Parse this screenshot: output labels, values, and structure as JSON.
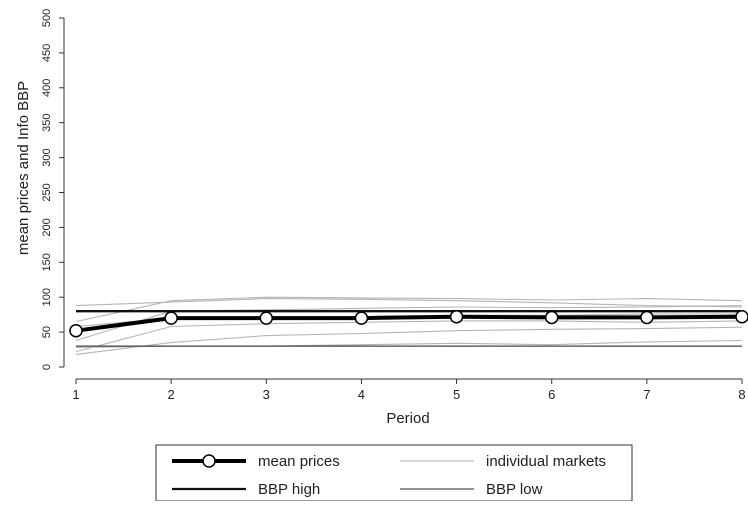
{
  "chart_data": {
    "type": "line",
    "title": "",
    "xlabel": "Period",
    "ylabel": "mean prices and Info BBP",
    "x": [
      1,
      2,
      3,
      4,
      5,
      6,
      7,
      8
    ],
    "xlim": [
      1,
      8
    ],
    "ylim": [
      0,
      500
    ],
    "yticks": [
      0,
      50,
      100,
      150,
      200,
      250,
      300,
      350,
      400,
      450,
      500
    ],
    "xticks": [
      1,
      2,
      3,
      4,
      5,
      6,
      7,
      8
    ],
    "grid": false,
    "legend_position": "bottom",
    "series": [
      {
        "name": "mean prices",
        "values": [
          52,
          70,
          70,
          70,
          72,
          71,
          71,
          72
        ],
        "style": "thick-marker",
        "color": "#000000"
      },
      {
        "name": "BBP high",
        "values": [
          80,
          80,
          80,
          80,
          80,
          80,
          80,
          80
        ],
        "style": "solid",
        "color": "#111111"
      },
      {
        "name": "BBP low",
        "values": [
          30,
          30,
          30,
          30,
          30,
          30,
          30,
          30
        ],
        "style": "thin",
        "color": "#444444"
      },
      {
        "name": "individual markets",
        "style": "faint",
        "color": "#b5b5b5",
        "markets": [
          [
            88,
            93,
            98,
            97,
            95,
            92,
            88,
            86
          ],
          [
            65,
            95,
            100,
            99,
            98,
            96,
            98,
            95
          ],
          [
            38,
            80,
            82,
            84,
            86,
            85,
            86,
            88
          ],
          [
            22,
            58,
            62,
            64,
            66,
            66,
            64,
            66
          ],
          [
            18,
            35,
            45,
            48,
            52,
            54,
            55,
            57
          ],
          [
            28,
            30,
            30,
            32,
            34,
            32,
            36,
            38
          ],
          [
            58,
            70,
            72,
            72,
            74,
            74,
            76,
            76
          ]
        ]
      }
    ]
  },
  "legend": {
    "items": [
      {
        "label": "mean prices"
      },
      {
        "label": "individual markets"
      },
      {
        "label": "BBP high"
      },
      {
        "label": "BBP low"
      }
    ]
  }
}
